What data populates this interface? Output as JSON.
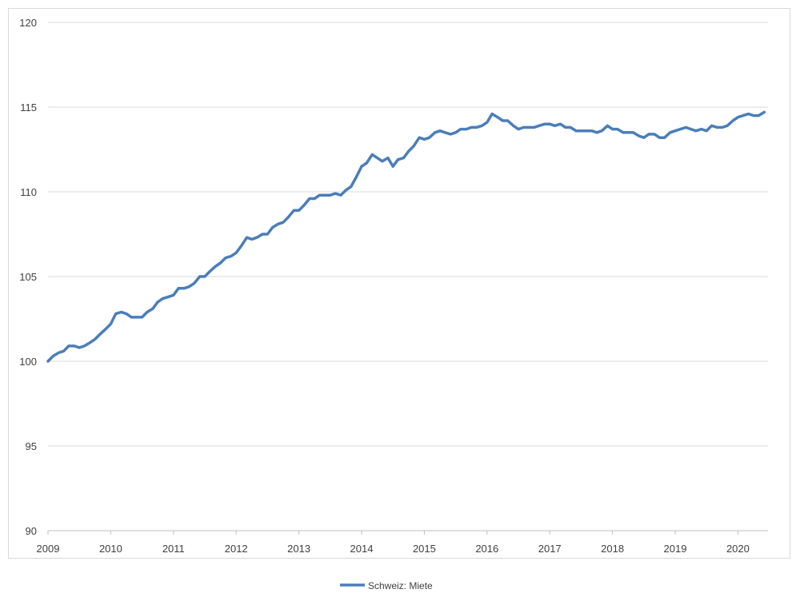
{
  "chart_data": {
    "type": "line",
    "title": "",
    "xlabel": "",
    "ylabel": "",
    "x_range": [
      2009.0,
      2020.5
    ],
    "ylim": [
      90,
      120
    ],
    "y_ticks": [
      90,
      95,
      100,
      105,
      110,
      115,
      120
    ],
    "x_ticks": [
      "2009",
      "2010",
      "2011",
      "2012",
      "2013",
      "2014",
      "2015",
      "2016",
      "2017",
      "2018",
      "2019",
      "2020"
    ],
    "grid": "horizontal",
    "legend_position": "bottom-center",
    "series": [
      {
        "name": "Schweiz: Miete",
        "color": "#4a7ebb",
        "points": [
          [
            2009.0,
            100.0
          ],
          [
            2009.08,
            100.3
          ],
          [
            2009.17,
            100.5
          ],
          [
            2009.25,
            100.6
          ],
          [
            2009.33,
            100.9
          ],
          [
            2009.42,
            100.9
          ],
          [
            2009.5,
            100.8
          ],
          [
            2009.58,
            100.9
          ],
          [
            2009.67,
            101.1
          ],
          [
            2009.75,
            101.3
          ],
          [
            2009.83,
            101.6
          ],
          [
            2009.92,
            101.9
          ],
          [
            2010.0,
            102.2
          ],
          [
            2010.08,
            102.8
          ],
          [
            2010.17,
            102.9
          ],
          [
            2010.25,
            102.8
          ],
          [
            2010.33,
            102.6
          ],
          [
            2010.42,
            102.6
          ],
          [
            2010.5,
            102.6
          ],
          [
            2010.58,
            102.9
          ],
          [
            2010.67,
            103.1
          ],
          [
            2010.75,
            103.5
          ],
          [
            2010.83,
            103.7
          ],
          [
            2010.92,
            103.8
          ],
          [
            2011.0,
            103.9
          ],
          [
            2011.08,
            104.3
          ],
          [
            2011.17,
            104.3
          ],
          [
            2011.25,
            104.4
          ],
          [
            2011.33,
            104.6
          ],
          [
            2011.42,
            105.0
          ],
          [
            2011.5,
            105.0
          ],
          [
            2011.58,
            105.3
          ],
          [
            2011.67,
            105.6
          ],
          [
            2011.75,
            105.8
          ],
          [
            2011.83,
            106.1
          ],
          [
            2011.92,
            106.2
          ],
          [
            2012.0,
            106.4
          ],
          [
            2012.08,
            106.8
          ],
          [
            2012.17,
            107.3
          ],
          [
            2012.25,
            107.2
          ],
          [
            2012.33,
            107.3
          ],
          [
            2012.42,
            107.5
          ],
          [
            2012.5,
            107.5
          ],
          [
            2012.58,
            107.9
          ],
          [
            2012.67,
            108.1
          ],
          [
            2012.75,
            108.2
          ],
          [
            2012.83,
            108.5
          ],
          [
            2012.92,
            108.9
          ],
          [
            2013.0,
            108.9
          ],
          [
            2013.08,
            109.2
          ],
          [
            2013.17,
            109.6
          ],
          [
            2013.25,
            109.6
          ],
          [
            2013.33,
            109.8
          ],
          [
            2013.42,
            109.8
          ],
          [
            2013.5,
            109.8
          ],
          [
            2013.58,
            109.9
          ],
          [
            2013.67,
            109.8
          ],
          [
            2013.75,
            110.1
          ],
          [
            2013.83,
            110.3
          ],
          [
            2013.92,
            110.9
          ],
          [
            2014.0,
            111.5
          ],
          [
            2014.08,
            111.7
          ],
          [
            2014.17,
            112.2
          ],
          [
            2014.25,
            112.0
          ],
          [
            2014.33,
            111.8
          ],
          [
            2014.42,
            112.0
          ],
          [
            2014.5,
            111.5
          ],
          [
            2014.58,
            111.9
          ],
          [
            2014.67,
            112.0
          ],
          [
            2014.75,
            112.4
          ],
          [
            2014.83,
            112.7
          ],
          [
            2014.92,
            113.2
          ],
          [
            2015.0,
            113.1
          ],
          [
            2015.08,
            113.2
          ],
          [
            2015.17,
            113.5
          ],
          [
            2015.25,
            113.6
          ],
          [
            2015.33,
            113.5
          ],
          [
            2015.42,
            113.4
          ],
          [
            2015.5,
            113.5
          ],
          [
            2015.58,
            113.7
          ],
          [
            2015.67,
            113.7
          ],
          [
            2015.75,
            113.8
          ],
          [
            2015.83,
            113.8
          ],
          [
            2015.92,
            113.9
          ],
          [
            2016.0,
            114.1
          ],
          [
            2016.08,
            114.6
          ],
          [
            2016.17,
            114.4
          ],
          [
            2016.25,
            114.2
          ],
          [
            2016.33,
            114.2
          ],
          [
            2016.42,
            113.9
          ],
          [
            2016.5,
            113.7
          ],
          [
            2016.58,
            113.8
          ],
          [
            2016.67,
            113.8
          ],
          [
            2016.75,
            113.8
          ],
          [
            2016.83,
            113.9
          ],
          [
            2016.92,
            114.0
          ],
          [
            2017.0,
            114.0
          ],
          [
            2017.08,
            113.9
          ],
          [
            2017.17,
            114.0
          ],
          [
            2017.25,
            113.8
          ],
          [
            2017.33,
            113.8
          ],
          [
            2017.42,
            113.6
          ],
          [
            2017.5,
            113.6
          ],
          [
            2017.58,
            113.6
          ],
          [
            2017.67,
            113.6
          ],
          [
            2017.75,
            113.5
          ],
          [
            2017.83,
            113.6
          ],
          [
            2017.92,
            113.9
          ],
          [
            2018.0,
            113.7
          ],
          [
            2018.08,
            113.7
          ],
          [
            2018.17,
            113.5
          ],
          [
            2018.25,
            113.5
          ],
          [
            2018.33,
            113.5
          ],
          [
            2018.42,
            113.3
          ],
          [
            2018.5,
            113.2
          ],
          [
            2018.58,
            113.4
          ],
          [
            2018.67,
            113.4
          ],
          [
            2018.75,
            113.2
          ],
          [
            2018.83,
            113.2
          ],
          [
            2018.92,
            113.5
          ],
          [
            2019.0,
            113.6
          ],
          [
            2019.08,
            113.7
          ],
          [
            2019.17,
            113.8
          ],
          [
            2019.25,
            113.7
          ],
          [
            2019.33,
            113.6
          ],
          [
            2019.42,
            113.7
          ],
          [
            2019.5,
            113.6
          ],
          [
            2019.58,
            113.9
          ],
          [
            2019.67,
            113.8
          ],
          [
            2019.75,
            113.8
          ],
          [
            2019.83,
            113.9
          ],
          [
            2019.92,
            114.2
          ],
          [
            2020.0,
            114.4
          ],
          [
            2020.08,
            114.5
          ],
          [
            2020.17,
            114.6
          ],
          [
            2020.25,
            114.5
          ],
          [
            2020.33,
            114.5
          ],
          [
            2020.42,
            114.7
          ]
        ]
      }
    ]
  }
}
